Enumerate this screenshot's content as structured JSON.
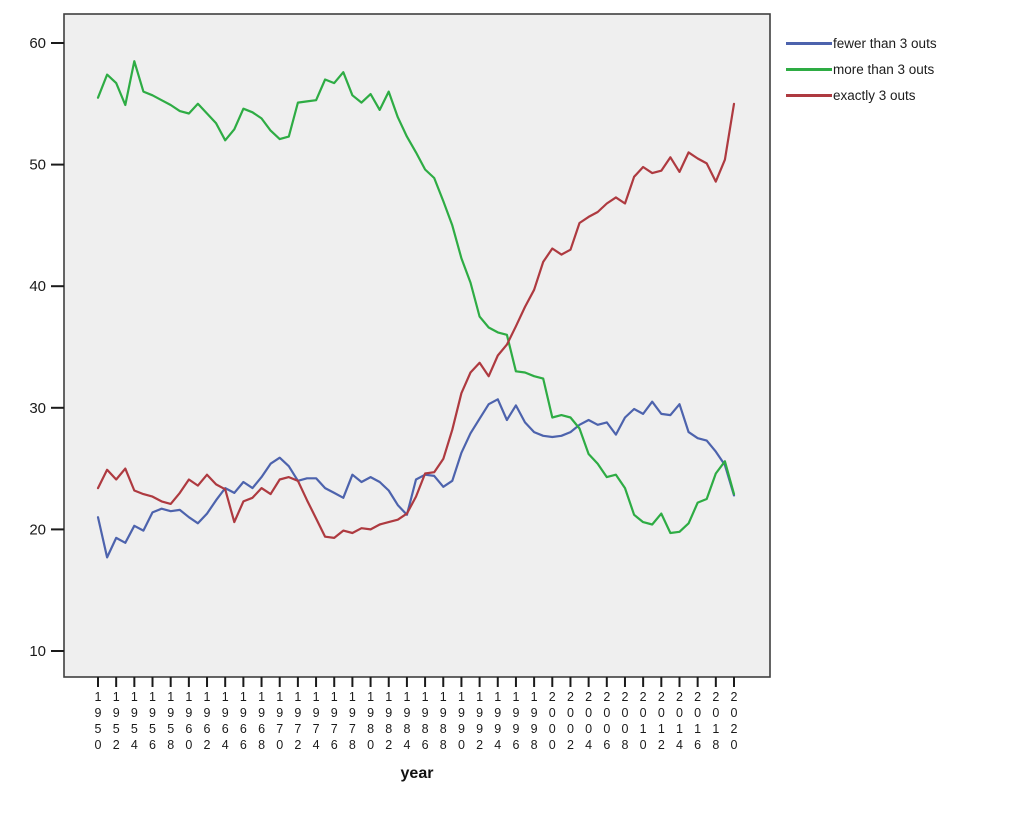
{
  "chart_data": {
    "type": "line",
    "title": "",
    "xlabel": "year",
    "ylabel": "",
    "grid": false,
    "legend_position": "upper-right-outside",
    "plot_bg": "#efefef",
    "border_color": "#3f3f3f",
    "tick_color": "#1a1a1a",
    "ylim": [
      8,
      62.4
    ],
    "yticks": [
      10,
      20,
      30,
      40,
      50,
      60
    ],
    "xticks": [
      1950,
      1952,
      1954,
      1956,
      1958,
      1960,
      1962,
      1964,
      1966,
      1968,
      1970,
      1972,
      1974,
      1976,
      1978,
      1980,
      1982,
      1984,
      1986,
      1988,
      1990,
      1992,
      1994,
      1996,
      1998,
      2000,
      2002,
      2004,
      2006,
      2008,
      2010,
      2012,
      2014,
      2016,
      2018,
      2020
    ],
    "x": [
      1950,
      1951,
      1952,
      1953,
      1954,
      1955,
      1956,
      1957,
      1958,
      1959,
      1960,
      1961,
      1962,
      1963,
      1964,
      1965,
      1966,
      1967,
      1968,
      1969,
      1970,
      1971,
      1972,
      1973,
      1974,
      1975,
      1976,
      1977,
      1978,
      1979,
      1980,
      1981,
      1982,
      1983,
      1984,
      1985,
      1986,
      1987,
      1988,
      1989,
      1990,
      1991,
      1992,
      1993,
      1994,
      1995,
      1996,
      1997,
      1998,
      1999,
      2000,
      2001,
      2002,
      2003,
      2004,
      2005,
      2006,
      2007,
      2008,
      2009,
      2010,
      2011,
      2012,
      2013,
      2014,
      2015,
      2016,
      2017,
      2018,
      2019,
      2020
    ],
    "series": [
      {
        "name": "fewer than 3 outs",
        "color": "#4d63ad",
        "values": [
          21.0,
          17.7,
          19.3,
          18.9,
          20.3,
          19.9,
          21.4,
          21.7,
          21.5,
          21.6,
          21.0,
          20.5,
          21.3,
          22.4,
          23.4,
          23.0,
          23.9,
          23.4,
          24.3,
          25.4,
          25.9,
          25.2,
          24.0,
          24.2,
          24.2,
          23.4,
          23.0,
          22.6,
          24.5,
          23.9,
          24.3,
          23.9,
          23.2,
          22.0,
          21.2,
          24.1,
          24.5,
          24.4,
          23.5,
          24.0,
          26.3,
          27.9,
          29.1,
          30.3,
          30.7,
          29.0,
          30.2,
          28.8,
          28.0,
          27.7,
          27.6,
          27.7,
          28.0,
          28.6,
          29.0,
          28.6,
          28.8,
          27.8,
          29.2,
          29.9,
          29.5,
          30.5,
          29.5,
          29.4,
          30.3,
          28.0,
          27.5,
          27.3,
          26.4,
          25.3,
          22.8
        ]
      },
      {
        "name": "more than 3 outs",
        "color": "#2eac44",
        "values": [
          55.5,
          57.4,
          56.7,
          54.9,
          58.5,
          56.0,
          55.7,
          55.3,
          54.9,
          54.4,
          54.2,
          55.0,
          54.2,
          53.4,
          52.0,
          52.9,
          54.6,
          54.3,
          53.8,
          52.8,
          52.1,
          52.3,
          55.1,
          55.2,
          55.3,
          57.0,
          56.7,
          57.6,
          55.7,
          55.1,
          55.8,
          54.5,
          56.0,
          53.9,
          52.3,
          51.0,
          49.6,
          48.9,
          47.0,
          45.0,
          42.3,
          40.3,
          37.5,
          36.6,
          36.2,
          36.0,
          33.0,
          32.9,
          32.6,
          32.4,
          29.2,
          29.4,
          29.2,
          28.3,
          26.2,
          25.4,
          24.3,
          24.5,
          23.4,
          21.2,
          20.6,
          20.4,
          21.3,
          19.7,
          19.8,
          20.5,
          22.2,
          22.5,
          24.6,
          25.6,
          22.9
        ]
      },
      {
        "name": "exactly 3 outs",
        "color": "#ae3a40",
        "values": [
          23.4,
          24.9,
          24.1,
          25.0,
          23.2,
          22.9,
          22.7,
          22.3,
          22.1,
          23.0,
          24.1,
          23.6,
          24.5,
          23.7,
          23.3,
          20.6,
          22.3,
          22.6,
          23.4,
          22.9,
          24.1,
          24.3,
          24.0,
          22.4,
          20.9,
          19.4,
          19.3,
          19.9,
          19.7,
          20.1,
          20.0,
          20.4,
          20.6,
          20.8,
          21.3,
          22.7,
          24.6,
          24.7,
          25.8,
          28.2,
          31.2,
          32.9,
          33.7,
          32.6,
          34.3,
          35.2,
          36.7,
          38.3,
          39.7,
          42.0,
          43.1,
          42.6,
          43.0,
          45.2,
          45.7,
          46.1,
          46.8,
          47.3,
          46.8,
          49.0,
          49.8,
          49.3,
          49.5,
          50.6,
          49.4,
          51.0,
          50.5,
          50.1,
          48.6,
          50.4,
          55.0
        ]
      }
    ]
  }
}
